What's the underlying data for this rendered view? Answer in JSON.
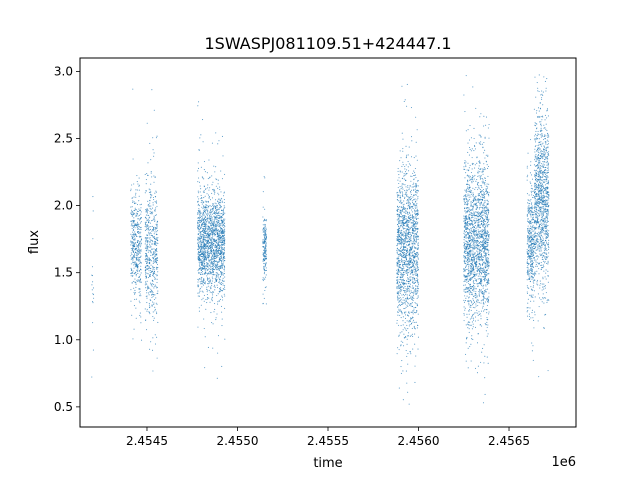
{
  "chart_data": {
    "type": "scatter",
    "title": "1SWASPJ081109.51+424447.1",
    "xlabel": "time",
    "ylabel": "flux",
    "x_offset_label": "1e6",
    "xlim": [
      2.45413,
      2.45687
    ],
    "ylim": [
      0.35,
      3.1
    ],
    "x_ticks": [
      2.4545,
      2.455,
      2.4555,
      2.456,
      2.4565
    ],
    "x_tick_labels": [
      "2.4545",
      "2.4550",
      "2.4555",
      "2.4560",
      "2.4565"
    ],
    "y_ticks": [
      0.5,
      1.0,
      1.5,
      2.0,
      2.5,
      3.0
    ],
    "y_tick_labels": [
      "0.5",
      "1.0",
      "1.5",
      "2.0",
      "2.5",
      "3.0"
    ],
    "grid": false,
    "marker_color": "#1f77b4",
    "series": [
      {
        "clusters": [
          {
            "x_range": [
              2.454195,
              2.454205
            ],
            "center": 1.55,
            "spread": 0.3,
            "count": 18
          },
          {
            "x_range": [
              2.45441,
              2.45447
            ],
            "center": 1.72,
            "spread": 0.18,
            "count": 420
          },
          {
            "x_range": [
              2.45449,
              2.45456
            ],
            "center": 1.68,
            "spread": 0.26,
            "count": 520
          },
          {
            "x_range": [
              2.45478,
              2.45493
            ],
            "center": 1.72,
            "spread": 0.2,
            "count": 1700
          },
          {
            "x_range": [
              2.45514,
              2.45516
            ],
            "center": 1.67,
            "spread": 0.14,
            "count": 180
          },
          {
            "x_range": [
              2.45588,
              2.456
            ],
            "center": 1.68,
            "spread": 0.3,
            "count": 1500
          },
          {
            "x_range": [
              2.45625,
              2.45639
            ],
            "center": 1.75,
            "spread": 0.3,
            "count": 1800
          },
          {
            "x_range": [
              2.4566,
              2.45664
            ],
            "center": 1.72,
            "spread": 0.22,
            "count": 400
          },
          {
            "x_range": [
              2.45664,
              2.45672
            ],
            "center": 2.05,
            "spread": 0.32,
            "count": 1100
          }
        ]
      }
    ]
  }
}
